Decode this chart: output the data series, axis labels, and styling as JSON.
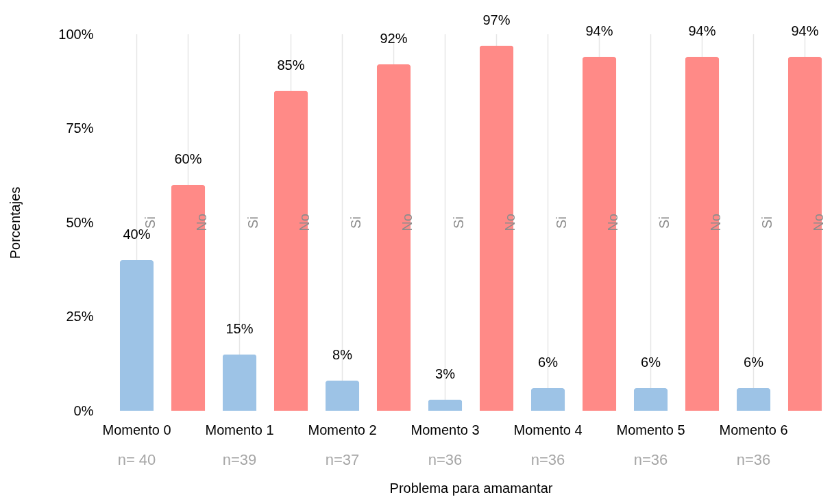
{
  "chart_data": {
    "type": "bar",
    "xlabel": "Problema para amamantar",
    "ylabel": "Porcentajes",
    "categories": [
      "Momento 0",
      "Momento 1",
      "Momento 2",
      "Momento 3",
      "Momento 4",
      "Momento 5",
      "Momento 6"
    ],
    "series": [
      {
        "name": "Si",
        "color": "#9dc3e6",
        "values": [
          40,
          15,
          8,
          3,
          6,
          6,
          6
        ],
        "value_labels": [
          "40%",
          "15%",
          "8%",
          "3%",
          "6%",
          "6%",
          "6%"
        ]
      },
      {
        "name": "No",
        "color": "#ff8a87",
        "values": [
          60,
          85,
          92,
          97,
          94,
          94,
          94
        ],
        "value_labels": [
          "60%",
          "85%",
          "92%",
          "97%",
          "94%",
          "94%",
          "94%"
        ]
      }
    ],
    "ylim": [
      0,
      100
    ],
    "yticks": [
      {
        "value": 0,
        "label": "0%"
      },
      {
        "value": 25,
        "label": "25%"
      },
      {
        "value": 50,
        "label": "50%"
      },
      {
        "value": 75,
        "label": "75%"
      },
      {
        "value": 100,
        "label": "100%"
      }
    ],
    "grid": "x",
    "annotations": [
      "n= 40",
      "n=39",
      "n=37",
      "n=36",
      "n=36",
      "n=36",
      "n=36"
    ]
  }
}
